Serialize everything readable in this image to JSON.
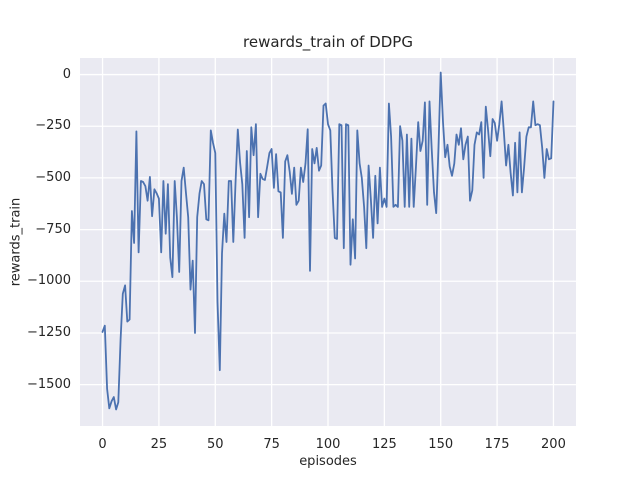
{
  "figure": {
    "title": "rewards_train of DDPG",
    "xlabel": "episodes",
    "ylabel": "rewards_train"
  },
  "colors": {
    "figure_background": "#ffffff",
    "axes_background": "#eaeaf2",
    "grid": "#ffffff",
    "line": "#4c72b0",
    "text": "#262626"
  },
  "chart_data": {
    "type": "line",
    "title": "rewards_train of DDPG",
    "xlabel": "episodes",
    "ylabel": "rewards_train",
    "style": "seaborn-darkgrid",
    "grid": true,
    "legend": false,
    "xlim": [
      -10,
      210
    ],
    "ylim": [
      -1700,
      80
    ],
    "xticks": {
      "values": [
        0,
        25,
        50,
        75,
        100,
        125,
        150,
        175,
        200
      ],
      "labels": [
        "0",
        "25",
        "50",
        "75",
        "100",
        "125",
        "150",
        "175",
        "200"
      ]
    },
    "yticks": {
      "values": [
        0,
        -250,
        -500,
        -750,
        -1000,
        -1250,
        -1500
      ],
      "labels": [
        "0",
        "−250",
        "−500",
        "−750",
        "−1000",
        "−1250",
        "−1500"
      ]
    },
    "series_name": "rewards_train",
    "x": [
      0,
      1,
      2,
      3,
      4,
      5,
      6,
      7,
      8,
      9,
      10,
      11,
      12,
      13,
      14,
      15,
      16,
      17,
      18,
      19,
      20,
      21,
      22,
      23,
      24,
      25,
      26,
      27,
      28,
      29,
      30,
      31,
      32,
      33,
      34,
      35,
      36,
      37,
      38,
      39,
      40,
      41,
      42,
      43,
      44,
      45,
      46,
      47,
      48,
      49,
      50,
      51,
      52,
      53,
      54,
      55,
      56,
      57,
      58,
      59,
      60,
      61,
      62,
      63,
      64,
      65,
      66,
      67,
      68,
      69,
      70,
      71,
      72,
      73,
      74,
      75,
      76,
      77,
      78,
      79,
      80,
      81,
      82,
      83,
      84,
      85,
      86,
      87,
      88,
      89,
      90,
      91,
      92,
      93,
      94,
      95,
      96,
      97,
      98,
      99,
      100,
      101,
      102,
      103,
      104,
      105,
      106,
      107,
      108,
      109,
      110,
      111,
      112,
      113,
      114,
      115,
      116,
      117,
      118,
      119,
      120,
      121,
      122,
      123,
      124,
      125,
      126,
      127,
      128,
      129,
      130,
      131,
      132,
      133,
      134,
      135,
      136,
      137,
      138,
      139,
      140,
      141,
      142,
      143,
      144,
      145,
      146,
      147,
      148,
      149,
      150,
      151,
      152,
      153,
      154,
      155,
      156,
      157,
      158,
      159,
      160,
      161,
      162,
      163,
      164,
      165,
      166,
      167,
      168,
      169,
      170,
      171,
      172,
      173,
      174,
      175,
      176,
      177,
      178,
      179,
      180,
      181,
      182,
      183,
      184,
      185,
      186,
      187,
      188,
      189,
      190,
      191,
      192,
      193,
      194,
      195,
      196,
      197,
      198,
      199,
      200
    ],
    "values": [
      -1245,
      -1215,
      -1520,
      -1615,
      -1580,
      -1560,
      -1620,
      -1585,
      -1280,
      -1060,
      -1020,
      -1195,
      -1185,
      -660,
      -815,
      -275,
      -860,
      -515,
      -520,
      -540,
      -610,
      -495,
      -685,
      -555,
      -575,
      -600,
      -860,
      -515,
      -770,
      -530,
      -885,
      -980,
      -515,
      -690,
      -955,
      -515,
      -450,
      -575,
      -690,
      -1040,
      -900,
      -1250,
      -690,
      -575,
      -515,
      -530,
      -700,
      -705,
      -270,
      -330,
      -380,
      -1100,
      -1430,
      -865,
      -673,
      -810,
      -515,
      -515,
      -810,
      -515,
      -266,
      -427,
      -530,
      -790,
      -370,
      -690,
      -255,
      -390,
      -240,
      -690,
      -480,
      -505,
      -510,
      -448,
      -380,
      -360,
      -548,
      -385,
      -565,
      -570,
      -790,
      -420,
      -390,
      -470,
      -577,
      -450,
      -630,
      -610,
      -450,
      -520,
      -430,
      -265,
      -950,
      -360,
      -430,
      -355,
      -465,
      -440,
      -150,
      -140,
      -240,
      -270,
      -560,
      -790,
      -795,
      -240,
      -245,
      -840,
      -240,
      -245,
      -920,
      -700,
      -890,
      -270,
      -430,
      -500,
      -640,
      -840,
      -440,
      -600,
      -790,
      -490,
      -720,
      -450,
      -640,
      -600,
      -640,
      -140,
      -300,
      -640,
      -630,
      -640,
      -250,
      -320,
      -640,
      -290,
      -640,
      -310,
      -640,
      -450,
      -230,
      -370,
      -320,
      -135,
      -630,
      -130,
      -360,
      -570,
      -670,
      -350,
      10,
      -230,
      -400,
      -340,
      -445,
      -490,
      -430,
      -290,
      -340,
      -260,
      -410,
      -340,
      -300,
      -610,
      -560,
      -340,
      -280,
      -290,
      -230,
      -500,
      -155,
      -270,
      -395,
      -215,
      -235,
      -320,
      -240,
      -130,
      -280,
      -440,
      -340,
      -475,
      -585,
      -330,
      -570,
      -280,
      -570,
      -450,
      -300,
      -255,
      -255,
      -130,
      -245,
      -240,
      -245,
      -355,
      -500,
      -360,
      -410,
      -405,
      -130
    ]
  }
}
